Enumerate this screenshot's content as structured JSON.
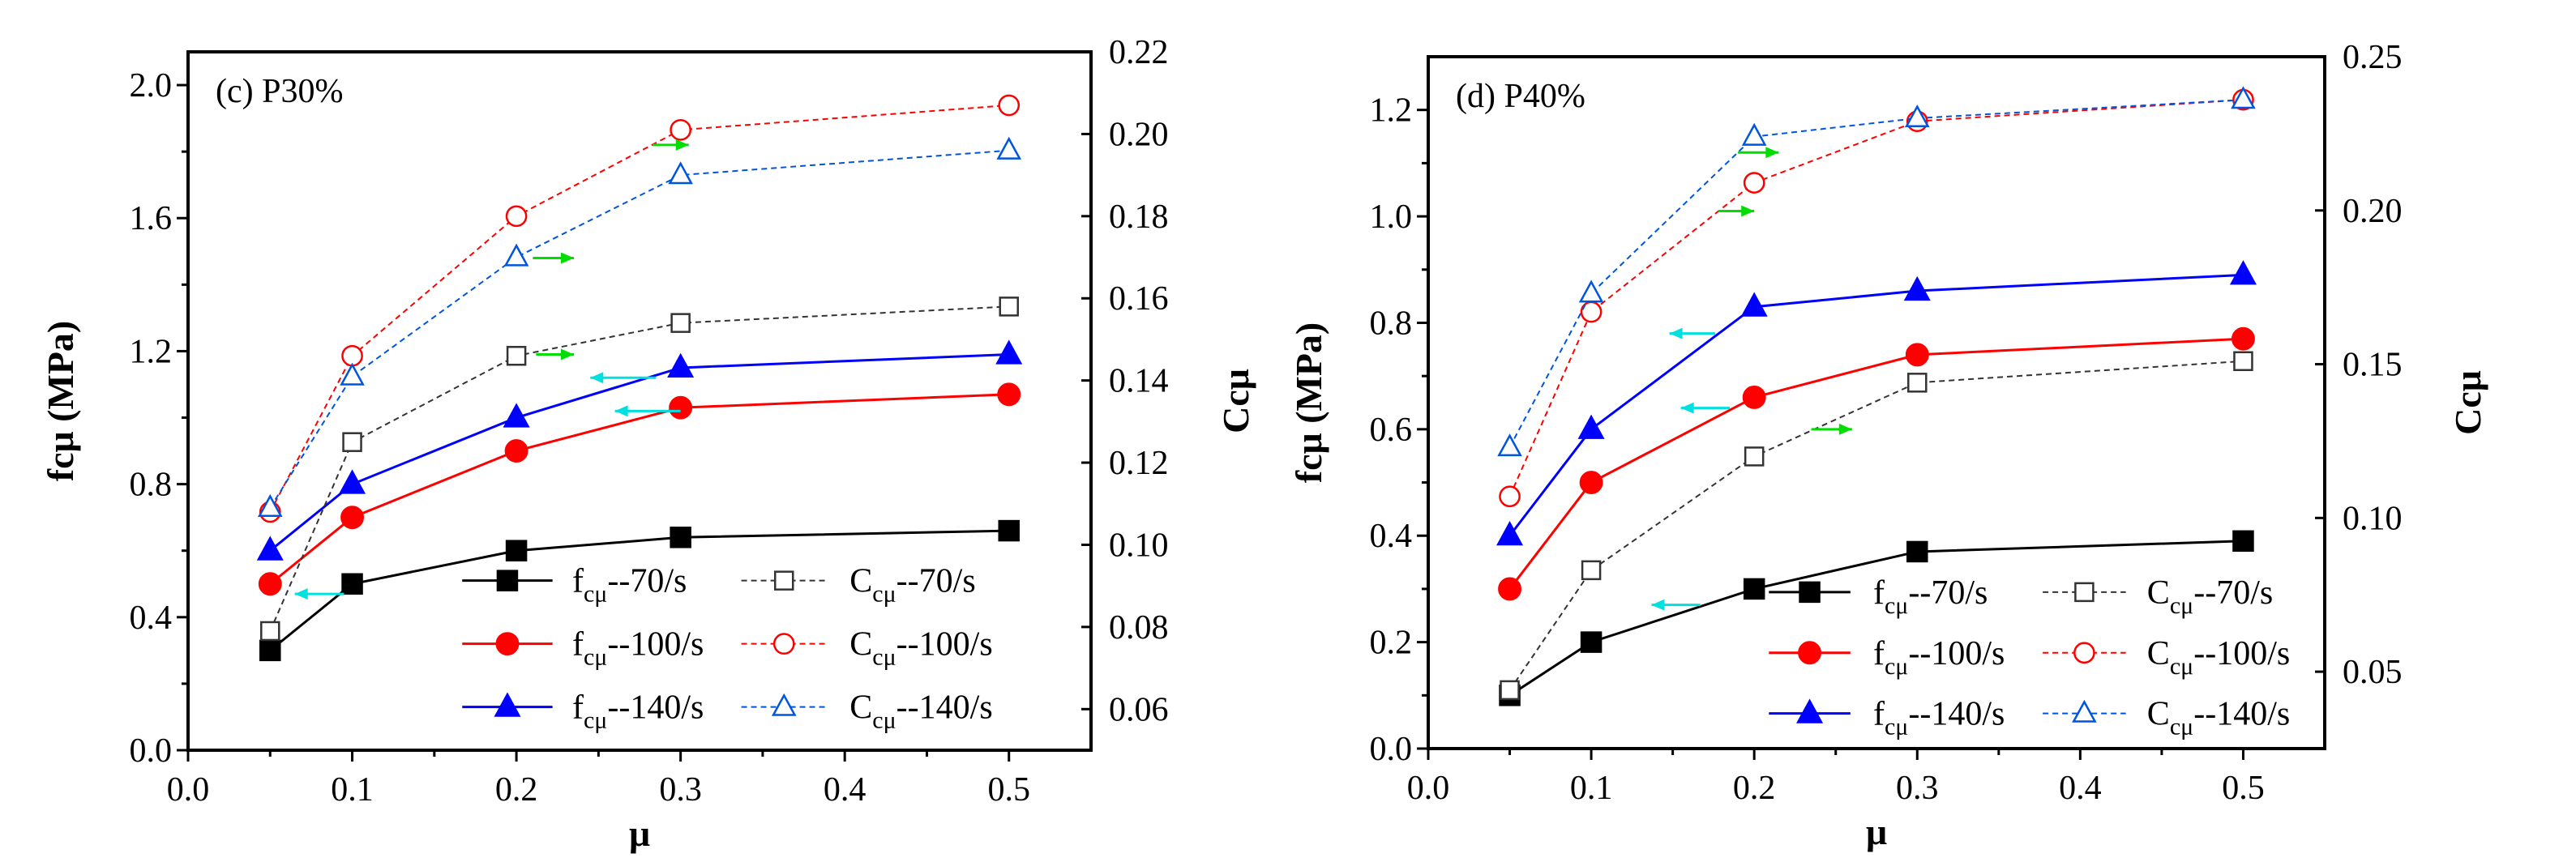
{
  "chart_data": [
    {
      "type": "line",
      "panel_label": "(c) P30%",
      "xlabel": "μ",
      "ylabel": "fcμ (MPa)",
      "y2label": "Ccμ",
      "xlim": [
        0,
        0.55
      ],
      "ylim": [
        0,
        2.1
      ],
      "y2lim": [
        0.05,
        0.22
      ],
      "xticks": [
        "0.0",
        "0.1",
        "0.2",
        "0.3",
        "0.4",
        "0.5"
      ],
      "yticks": [
        "0.0",
        "0.4",
        "0.8",
        "1.2",
        "1.6",
        "2.0"
      ],
      "y2ticks": [
        "0.06",
        "0.08",
        "0.10",
        "0.12",
        "0.14",
        "0.16",
        "0.18",
        "0.20",
        "0.22"
      ],
      "x": [
        0.05,
        0.1,
        0.2,
        0.3,
        0.5
      ],
      "series": [
        {
          "name": "fcμ--70/s",
          "label": {
            "main": "f",
            "sub": "cμ",
            "rest": "--70/s"
          },
          "axis": "left",
          "color": "#000000",
          "marker": "square",
          "filled": true,
          "dashed": false,
          "values": [
            0.3,
            0.5,
            0.6,
            0.64,
            0.66
          ]
        },
        {
          "name": "fcμ--100/s",
          "label": {
            "main": "f",
            "sub": "cμ",
            "rest": "--100/s"
          },
          "axis": "left",
          "color": "#ff0000",
          "marker": "circle",
          "filled": true,
          "dashed": false,
          "values": [
            0.5,
            0.7,
            0.9,
            1.03,
            1.07
          ]
        },
        {
          "name": "fcμ--140/s",
          "label": {
            "main": "f",
            "sub": "cμ",
            "rest": "--140/s"
          },
          "axis": "left",
          "color": "#0000ff",
          "marker": "triangle",
          "filled": true,
          "dashed": false,
          "values": [
            0.6,
            0.8,
            1.0,
            1.15,
            1.19
          ]
        },
        {
          "name": "Ccμ--70/s",
          "label": {
            "main": "C",
            "sub": "cμ",
            "rest": "--70/s"
          },
          "axis": "right",
          "color": "#333333",
          "marker": "square",
          "filled": false,
          "dashed": true,
          "values": [
            0.079,
            0.125,
            0.146,
            0.154,
            0.158
          ]
        },
        {
          "name": "Ccμ--100/s",
          "label": {
            "main": "C",
            "sub": "cμ",
            "rest": "--100/s"
          },
          "axis": "right",
          "color": "#ff0000",
          "marker": "circle",
          "filled": false,
          "dashed": true,
          "values": [
            0.108,
            0.146,
            0.18,
            0.201,
            0.207
          ]
        },
        {
          "name": "Ccμ--140/s",
          "label": {
            "main": "C",
            "sub": "cμ",
            "rest": "--140/s"
          },
          "axis": "right",
          "color": "#0055dd",
          "marker": "triangle",
          "filled": false,
          "dashed": true,
          "values": [
            0.109,
            0.141,
            0.17,
            0.19,
            0.196
          ]
        }
      ],
      "arrows": [
        {
          "direction": "right",
          "color": "#00dd00",
          "x": [
            0.21,
            0.235
          ],
          "y": 1.48
        },
        {
          "direction": "right",
          "color": "#00dd00",
          "x": [
            0.283,
            0.305
          ],
          "y": 1.82
        },
        {
          "direction": "right",
          "color": "#00dd00",
          "x": [
            0.212,
            0.235
          ],
          "y": 1.19
        },
        {
          "direction": "left",
          "color": "#00e0e0",
          "x": [
            0.245,
            0.285
          ],
          "y": 1.12
        },
        {
          "direction": "left",
          "color": "#00e0e0",
          "x": [
            0.26,
            0.3
          ],
          "y": 1.02
        },
        {
          "direction": "left",
          "color": "#00e0e0",
          "x": [
            0.065,
            0.095
          ],
          "y": 0.47
        }
      ],
      "legend_position": "bottom-right"
    },
    {
      "type": "line",
      "panel_label": "(d) P40%",
      "xlabel": "μ",
      "ylabel": "fcμ (MPa)",
      "y2label": "Ccμ",
      "xlim": [
        0,
        0.55
      ],
      "ylim": [
        0,
        1.3
      ],
      "y2lim": [
        0.025,
        0.25
      ],
      "xticks": [
        "0.0",
        "0.1",
        "0.2",
        "0.3",
        "0.4",
        "0.5"
      ],
      "yticks": [
        "0.0",
        "0.2",
        "0.4",
        "0.6",
        "0.8",
        "1.0",
        "1.2"
      ],
      "y2ticks": [
        "0.05",
        "0.10",
        "0.15",
        "0.20",
        "0.25"
      ],
      "x": [
        0.05,
        0.1,
        0.2,
        0.3,
        0.5
      ],
      "series": [
        {
          "name": "fcμ--70/s",
          "label": {
            "main": "f",
            "sub": "cμ",
            "rest": "--70/s"
          },
          "axis": "left",
          "color": "#000000",
          "marker": "square",
          "filled": true,
          "dashed": false,
          "values": [
            0.1,
            0.2,
            0.3,
            0.37,
            0.39
          ]
        },
        {
          "name": "fcμ--100/s",
          "label": {
            "main": "f",
            "sub": "cμ",
            "rest": "--100/s"
          },
          "axis": "left",
          "color": "#ff0000",
          "marker": "circle",
          "filled": true,
          "dashed": false,
          "values": [
            0.3,
            0.5,
            0.66,
            0.74,
            0.77
          ]
        },
        {
          "name": "fcμ--140/s",
          "label": {
            "main": "f",
            "sub": "cμ",
            "rest": "--140/s"
          },
          "axis": "left",
          "color": "#0000ff",
          "marker": "triangle",
          "filled": true,
          "dashed": false,
          "values": [
            0.4,
            0.6,
            0.83,
            0.86,
            0.89
          ]
        },
        {
          "name": "Ccμ--70/s",
          "label": {
            "main": "C",
            "sub": "cμ",
            "rest": "--70/s"
          },
          "axis": "right",
          "color": "#333333",
          "marker": "square",
          "filled": false,
          "dashed": true,
          "values": [
            0.044,
            0.083,
            0.12,
            0.144,
            0.151
          ]
        },
        {
          "name": "Ccμ--100/s",
          "label": {
            "main": "C",
            "sub": "cμ",
            "rest": "--100/s"
          },
          "axis": "right",
          "color": "#ff0000",
          "marker": "circle",
          "filled": false,
          "dashed": true,
          "values": [
            0.107,
            0.167,
            0.209,
            0.229,
            0.236
          ]
        },
        {
          "name": "Ccμ--140/s",
          "label": {
            "main": "C",
            "sub": "cμ",
            "rest": "--140/s"
          },
          "axis": "right",
          "color": "#0055dd",
          "marker": "triangle",
          "filled": false,
          "dashed": true,
          "values": [
            0.123,
            0.173,
            0.224,
            0.23,
            0.236
          ]
        }
      ],
      "arrows": [
        {
          "direction": "right",
          "color": "#00dd00",
          "x": [
            0.19,
            0.215
          ],
          "y": 1.12
        },
        {
          "direction": "right",
          "color": "#00dd00",
          "x": [
            0.178,
            0.2
          ],
          "y": 1.01
        },
        {
          "direction": "right",
          "color": "#00dd00",
          "x": [
            0.235,
            0.26
          ],
          "y": 0.6
        },
        {
          "direction": "left",
          "color": "#00e0e0",
          "x": [
            0.148,
            0.176
          ],
          "y": 0.78
        },
        {
          "direction": "left",
          "color": "#00e0e0",
          "x": [
            0.155,
            0.185
          ],
          "y": 0.64
        },
        {
          "direction": "left",
          "color": "#00e0e0",
          "x": [
            0.137,
            0.167
          ],
          "y": 0.27
        }
      ],
      "legend_position": "bottom-right"
    }
  ]
}
